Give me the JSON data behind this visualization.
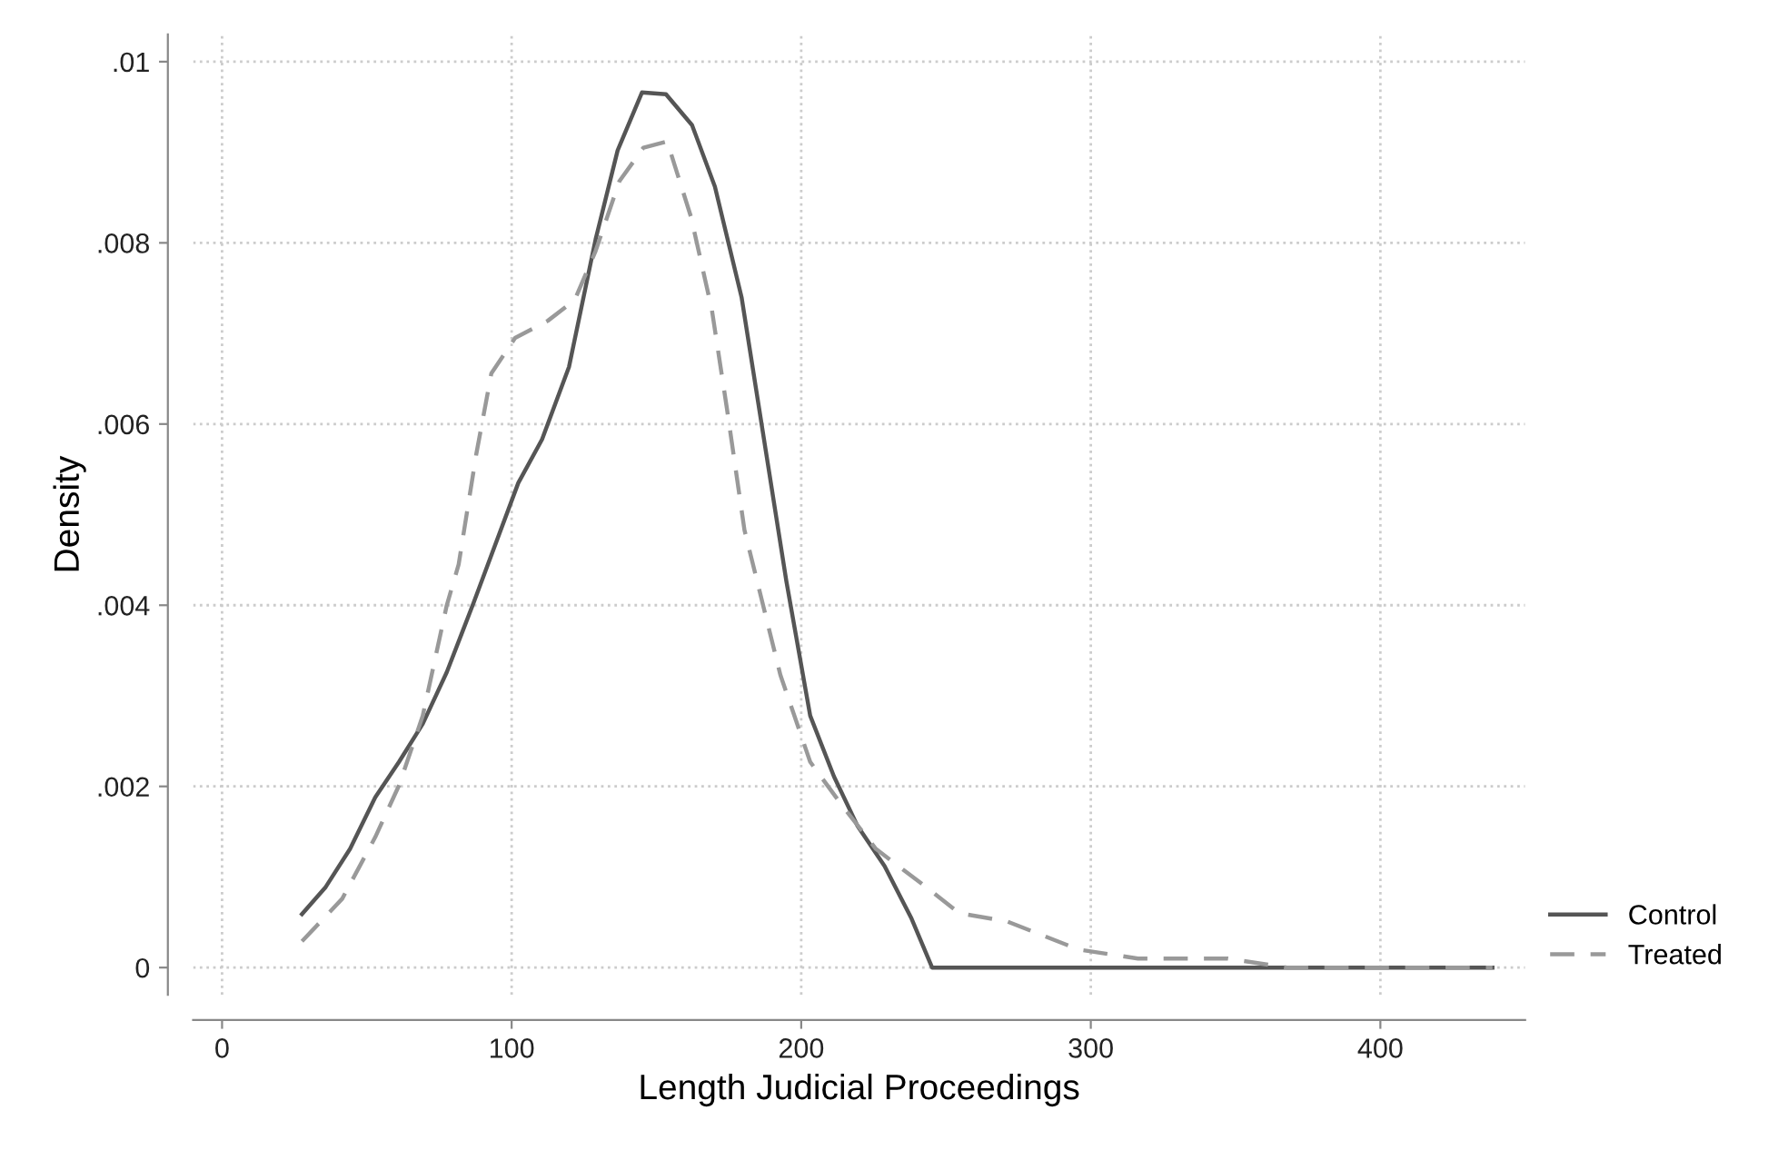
{
  "chart_data": {
    "type": "line",
    "xlabel": "Length Judicial Proceedings",
    "ylabel": "Density",
    "xlim": [
      -10,
      450
    ],
    "ylim": [
      -0.0003,
      0.0103
    ],
    "xticks": [
      0,
      100,
      200,
      300,
      400
    ],
    "yticks": [
      0,
      {
        "value": 0.002,
        "label": ".002"
      },
      {
        "value": 0.004,
        "label": ".004"
      },
      {
        "value": 0.006,
        "label": ".006"
      },
      {
        "value": 0.008,
        "label": ".008"
      },
      {
        "value": 0.01,
        "label": ".01"
      }
    ],
    "grid": true,
    "legend": "right",
    "marker": "none",
    "series": [
      {
        "name": "Control",
        "color": "#555555",
        "line_style": "solid",
        "x": [
          27.6,
          35.8,
          44.2,
          52.9,
          61.1,
          69.3,
          77.6,
          86.9,
          102.3,
          110.5,
          119.8,
          129,
          136.6,
          145,
          153.3,
          162.3,
          170.2,
          179.4,
          194.9,
          203.1,
          211.3,
          219.5,
          228.8,
          238.1,
          245.2,
          438.7
        ],
        "values": [
          0.00059,
          0.00089,
          0.00131,
          0.00188,
          0.00227,
          0.00269,
          0.00326,
          0.00403,
          0.00535,
          0.00583,
          0.00663,
          0.00804,
          0.00902,
          0.00966,
          0.00964,
          0.0093,
          0.00862,
          0.0074,
          0.00426,
          0.00278,
          0.00211,
          0.00156,
          0.00112,
          0.00054,
          0,
          0
        ]
      },
      {
        "name": "Treated",
        "color": "#999999",
        "line_style": "dashed",
        "x": [
          27.6,
          41.5,
          52.9,
          61.1,
          69.3,
          77.6,
          81.7,
          87.8,
          93,
          101.2,
          112.5,
          121.8,
          129,
          137.2,
          145.5,
          153.7,
          161.9,
          169.1,
          174.3,
          180.4,
          192.8,
          203.1,
          213.4,
          225.8,
          244.3,
          254.6,
          271,
          295.7,
          316.3,
          328.6,
          347.2,
          367.7,
          378,
          438.7
        ],
        "values": [
          0.00029,
          0.00076,
          0.00144,
          0.00201,
          0.00278,
          0.004,
          0.00445,
          0.00567,
          0.00656,
          0.00695,
          0.00714,
          0.00737,
          0.00791,
          0.00868,
          0.00905,
          0.00912,
          0.00829,
          0.00727,
          0.00618,
          0.00483,
          0.00323,
          0.00227,
          0.00182,
          0.00131,
          0.00086,
          0.0006,
          0.00051,
          0.0002,
          0.0001,
          0.0001,
          0.0001,
          0,
          0,
          0
        ]
      }
    ]
  }
}
